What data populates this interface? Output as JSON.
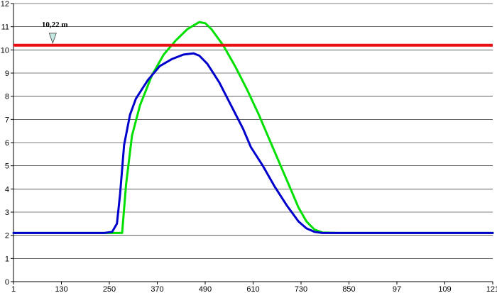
{
  "chart_data": {
    "type": "line",
    "title": "",
    "xlabel": "",
    "ylabel": "",
    "x_tick_labels": [
      "1",
      "130",
      "250",
      "370",
      "490",
      "610",
      "730",
      "850",
      "97",
      "109",
      "121"
    ],
    "y_tick_labels": [
      "0",
      "1",
      "2",
      "3",
      "4",
      "5",
      "6",
      "7",
      "8",
      "9",
      "10",
      "11",
      "12"
    ],
    "xlim": [
      1,
      1210
    ],
    "ylim": [
      0,
      12
    ],
    "grid": "horizontal",
    "series": [
      {
        "color": "#00e000",
        "x": [
          1,
          260,
          275,
          285,
          300,
          320,
          350,
          380,
          410,
          440,
          470,
          485,
          500,
          530,
          560,
          590,
          620,
          650,
          680,
          700,
          720,
          740,
          760,
          780,
          820,
          900,
          1000,
          1100,
          1210
        ],
        "y": [
          2.1,
          2.1,
          2.1,
          4.2,
          6.3,
          7.6,
          8.9,
          9.8,
          10.4,
          10.9,
          11.2,
          11.15,
          10.9,
          10.2,
          9.3,
          8.3,
          7.2,
          6.0,
          4.8,
          4.0,
          3.2,
          2.6,
          2.25,
          2.12,
          2.1,
          2.1,
          2.1,
          2.1,
          2.1
        ]
      },
      {
        "color": "#0000cc",
        "x": [
          1,
          230,
          250,
          262,
          270,
          280,
          295,
          310,
          340,
          370,
          400,
          430,
          455,
          470,
          490,
          520,
          550,
          580,
          600,
          630,
          660,
          690,
          720,
          740,
          760,
          780,
          820,
          900,
          1000,
          1100,
          1210
        ],
        "y": [
          2.1,
          2.1,
          2.15,
          2.5,
          3.8,
          5.9,
          7.2,
          7.9,
          8.7,
          9.3,
          9.6,
          9.8,
          9.85,
          9.75,
          9.4,
          8.6,
          7.6,
          6.6,
          5.8,
          5.0,
          4.1,
          3.3,
          2.6,
          2.3,
          2.15,
          2.1,
          2.1,
          2.1,
          2.1,
          2.1,
          2.1
        ]
      }
    ],
    "reference_line": {
      "y": 10.2,
      "color": "#e81010",
      "label": "10,22 m",
      "marker_x": 100
    }
  }
}
